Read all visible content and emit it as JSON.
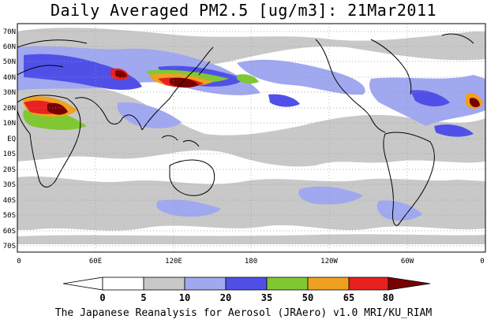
{
  "title": "Daily Averaged PM2.5 [ug/m3]: 21Mar2011",
  "credit": "The Japanese Reanalysis for Aerosol (JRAero) v1.0 MRI/KU_RIAM",
  "lat_labels": [
    "70N",
    "60N",
    "50N",
    "40N",
    "30N",
    "20N",
    "10N",
    "EQ",
    "10S",
    "20S",
    "30S",
    "40S",
    "50S",
    "60S",
    "70S"
  ],
  "lon_labels": [
    "0",
    "60E",
    "120E",
    "180",
    "120W",
    "60W",
    "0"
  ],
  "colorbar": {
    "levels": [
      "0",
      "5",
      "10",
      "20",
      "35",
      "50",
      "65",
      "80"
    ],
    "colors": [
      "#ffffff",
      "#c8c8c8",
      "#a0a8f0",
      "#5050e8",
      "#80c830",
      "#f0a020",
      "#e82020",
      "#780000"
    ]
  },
  "colors": {
    "coast": "#000000",
    "grid": "#999999"
  }
}
